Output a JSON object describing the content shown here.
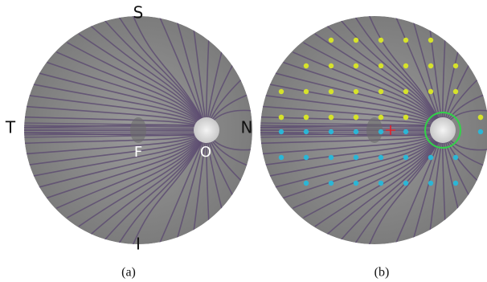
{
  "panels": [
    {
      "labels": {
        "superior": "S",
        "temporal": "T",
        "nasal": "N",
        "inferior": "I",
        "fovea": "F",
        "optic_disc": "O"
      },
      "caption": "(a)"
    },
    {
      "caption": "(b)"
    }
  ]
}
